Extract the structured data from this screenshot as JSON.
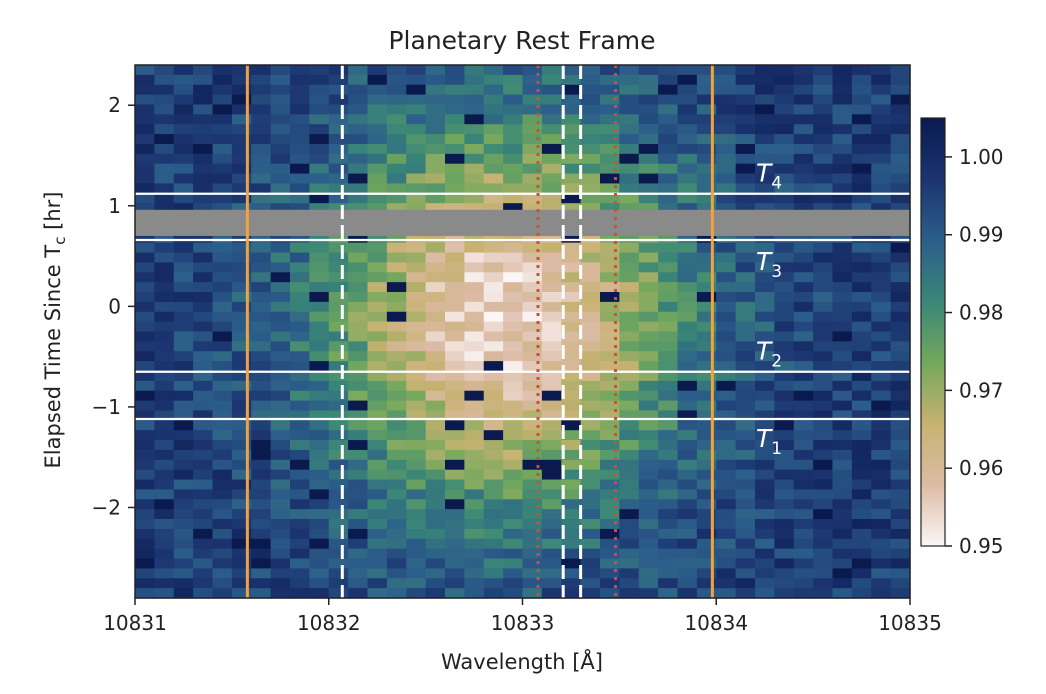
{
  "chart_data": {
    "type": "heatmap",
    "title": "Planetary Rest Frame",
    "xlabel": "Wavelength [Å]",
    "ylabel": "Elapsed Time Since T",
    "ylabel_sub": "c",
    "ylabel_unit": " [hr]",
    "xlim": [
      10831,
      10835
    ],
    "ylim": [
      -2.9,
      2.4
    ],
    "xticks": [
      10831,
      10832,
      10833,
      10834,
      10835
    ],
    "yticks": [
      -2,
      -1,
      0,
      1,
      2
    ],
    "colorbar": {
      "range": [
        0.95,
        1.005
      ],
      "ticks": [
        0.95,
        0.96,
        0.97,
        0.98,
        0.99,
        1.0
      ],
      "tick_labels": [
        "0.95",
        "0.96",
        "0.97",
        "0.98",
        "0.99",
        "1.00"
      ],
      "colormap": [
        "#fcf6f6",
        "#dcbba6",
        "#c7b271",
        "#74a85c",
        "#3a8677",
        "#2c5e8a",
        "#1b3470",
        "#0a1a4f"
      ]
    },
    "absorption": {
      "center_wavelength": 10832.9,
      "center_time": -0.1,
      "width_wavelength": 0.65,
      "width_time": 1.35,
      "depth": 0.042,
      "continuum": 0.996
    },
    "masked_band": {
      "y0": 0.7,
      "y1": 0.96,
      "color": "#8a8a8a"
    },
    "contact_lines": [
      {
        "label": "T",
        "sub": "1",
        "y": -1.12,
        "label_y": -1.32
      },
      {
        "label": "T",
        "sub": "2",
        "y": -0.65,
        "label_y": -0.45
      },
      {
        "label": "T",
        "sub": "3",
        "y": 0.66,
        "label_y": 0.44
      },
      {
        "label": "T",
        "sub": "4",
        "y": 1.12,
        "label_y": 1.32
      }
    ],
    "vertical_lines": [
      {
        "x": 10831.58,
        "style": "solid",
        "color": "#f2a13c"
      },
      {
        "x": 10833.98,
        "style": "solid",
        "color": "#f2a13c"
      },
      {
        "x": 10832.07,
        "style": "dashed",
        "color": "#ffffff"
      },
      {
        "x": 10833.21,
        "style": "dashed",
        "color": "#ffffff"
      },
      {
        "x": 10833.3,
        "style": "dashed",
        "color": "#ffffff"
      },
      {
        "x": 10833.08,
        "style": "dotted",
        "color": "#e2443a"
      },
      {
        "x": 10833.48,
        "style": "dotted",
        "color": "#e2443a"
      }
    ]
  }
}
